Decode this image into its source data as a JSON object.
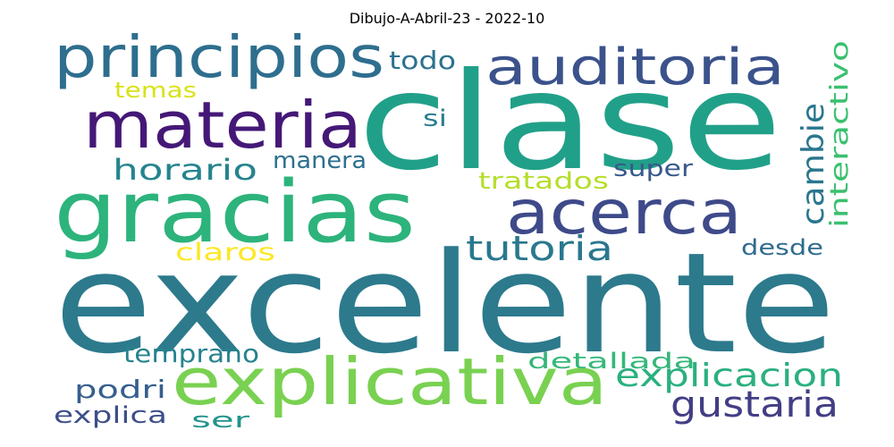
{
  "title": "Dibujo-A-Abril-23 - 2022-10",
  "words": [
    {
      "text": "excelente",
      "color": "#2c7a8c"
    },
    {
      "text": "clase",
      "color": "#21a089"
    },
    {
      "text": "gracias",
      "color": "#2db37c"
    },
    {
      "text": "explicativa",
      "color": "#79d151"
    },
    {
      "text": "materia",
      "color": "#451877"
    },
    {
      "text": "principios",
      "color": "#2e6e8e"
    },
    {
      "text": "auditoria",
      "color": "#3b528b"
    },
    {
      "text": "acerca",
      "color": "#3e4a89"
    },
    {
      "text": "tutoria",
      "color": "#2a788e"
    },
    {
      "text": "horario",
      "color": "#25848e"
    },
    {
      "text": "gustaria",
      "color": "#433e85"
    },
    {
      "text": "explicacion",
      "color": "#2ab07f"
    },
    {
      "text": "cambie",
      "color": "#2a768e"
    },
    {
      "text": "interactivo",
      "color": "#3ac06f"
    },
    {
      "text": "tratados",
      "color": "#b5de2b"
    },
    {
      "text": "super",
      "color": "#38598c"
    },
    {
      "text": "manera",
      "color": "#2d708e"
    },
    {
      "text": "todo",
      "color": "#2c718e"
    },
    {
      "text": "temas",
      "color": "#d8e219"
    },
    {
      "text": "si",
      "color": "#287d8e"
    },
    {
      "text": "claros",
      "color": "#fde725"
    },
    {
      "text": "desde",
      "color": "#2f6b8e"
    },
    {
      "text": "temprano",
      "color": "#26828e"
    },
    {
      "text": "detallada",
      "color": "#35b779"
    },
    {
      "text": "podri",
      "color": "#355f8d"
    },
    {
      "text": "explica",
      "color": "#3d4e8a"
    },
    {
      "text": "ser",
      "color": "#20928c"
    }
  ]
}
